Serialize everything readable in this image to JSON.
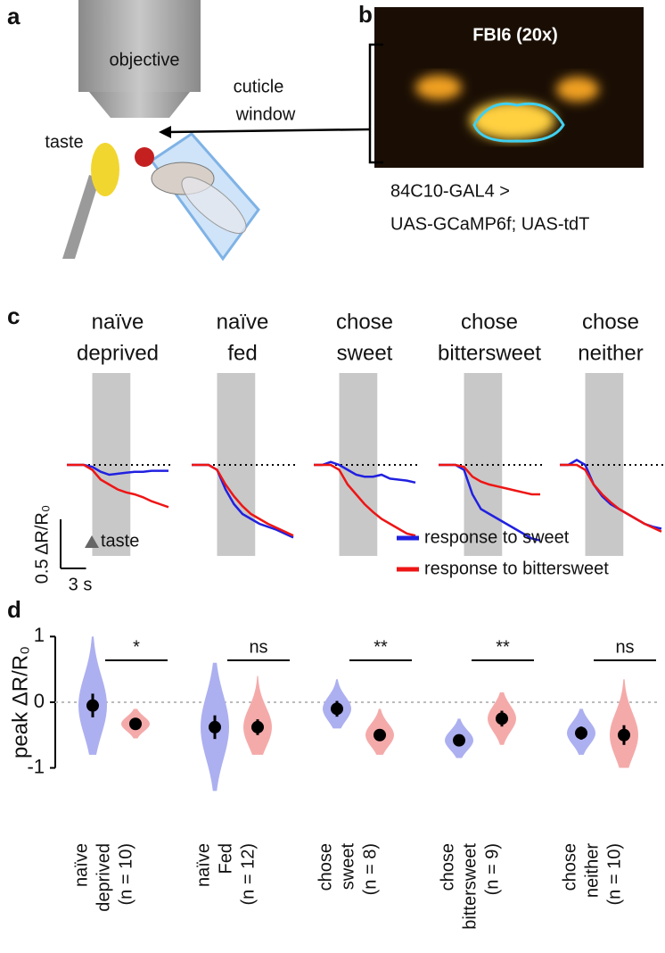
{
  "panel_labels": [
    "a",
    "b",
    "c",
    "d"
  ],
  "panel_a": {
    "objective": "objective",
    "cuticle_window": [
      "cuticle",
      "window"
    ],
    "taste": "taste"
  },
  "panel_b": {
    "title": "FBI6 (20x)",
    "genotype": [
      "84C10-GAL4 >",
      "UAS-GCaMP6f; UAS-tdT"
    ]
  },
  "chart_data": [
    {
      "type": "line",
      "x": [
        0,
        1,
        2,
        3,
        4,
        5,
        6,
        7,
        8,
        9,
        10,
        11,
        12
      ],
      "stimulus": [
        3,
        7.5
      ],
      "stimulus_label": "taste",
      "scale_bar": {
        "y": {
          "value": 0.5,
          "label": "0.5 ΔR/R₀"
        },
        "x": {
          "value": 3,
          "label": "3 s"
        }
      },
      "series": [
        {
          "name": "response to sweet",
          "color": "#2020e0"
        },
        {
          "name": "response to bittersweet",
          "color": "#ee1515"
        }
      ],
      "panels": [
        {
          "title": [
            "naïve",
            "deprived"
          ],
          "values": [
            [
              0,
              0,
              0,
              -0.02,
              -0.07,
              -0.1,
              -0.09,
              -0.08,
              -0.07,
              -0.07,
              -0.06,
              -0.06,
              -0.06
            ],
            [
              0,
              0,
              0,
              -0.05,
              -0.15,
              -0.2,
              -0.25,
              -0.28,
              -0.3,
              -0.33,
              -0.37,
              -0.4,
              -0.43
            ]
          ]
        },
        {
          "title": [
            "naïve",
            "fed"
          ],
          "values": [
            [
              0,
              0,
              0,
              -0.05,
              -0.25,
              -0.4,
              -0.5,
              -0.55,
              -0.6,
              -0.63,
              -0.66,
              -0.7,
              -0.74
            ],
            [
              0,
              0,
              0,
              -0.05,
              -0.2,
              -0.32,
              -0.42,
              -0.5,
              -0.55,
              -0.6,
              -0.64,
              -0.68,
              -0.72
            ]
          ]
        },
        {
          "title": [
            "chose",
            "sweet"
          ],
          "values": [
            [
              0,
              0,
              0.03,
              0,
              -0.05,
              -0.1,
              -0.12,
              -0.12,
              -0.1,
              -0.14,
              -0.15,
              -0.16,
              -0.18
            ],
            [
              0,
              0,
              0,
              -0.05,
              -0.2,
              -0.3,
              -0.4,
              -0.48,
              -0.55,
              -0.6,
              -0.65,
              -0.7,
              -0.72
            ]
          ]
        },
        {
          "title": [
            "chose",
            "bittersweet"
          ],
          "values": [
            [
              0,
              0,
              0,
              -0.05,
              -0.3,
              -0.45,
              -0.5,
              -0.55,
              -0.6,
              -0.65,
              -0.7,
              -0.75,
              -0.77
            ],
            [
              0,
              0,
              0,
              -0.02,
              -0.12,
              -0.17,
              -0.2,
              -0.22,
              -0.24,
              -0.26,
              -0.28,
              -0.3,
              -0.3
            ]
          ]
        },
        {
          "title": [
            "chose",
            "neither"
          ],
          "values": [
            [
              0,
              0,
              0.05,
              0,
              -0.2,
              -0.32,
              -0.4,
              -0.45,
              -0.5,
              -0.55,
              -0.6,
              -0.63,
              -0.65
            ],
            [
              0,
              0,
              0,
              -0.05,
              -0.2,
              -0.3,
              -0.38,
              -0.45,
              -0.5,
              -0.55,
              -0.6,
              -0.64,
              -0.68
            ]
          ]
        }
      ]
    },
    {
      "type": "violin",
      "ylabel": "peak ΔR/R₀",
      "ylim": [
        -1.4,
        1.1
      ],
      "yticks": [
        -1,
        0,
        1
      ],
      "categories": [
        [
          "naïve",
          "deprived",
          "(n = 10)"
        ],
        [
          "naïve",
          "Fed",
          "(n = 12)"
        ],
        [
          "chose",
          "sweet",
          "(n = 8)"
        ],
        [
          "chose",
          "bittersweet",
          "(n = 9)"
        ],
        [
          "chose",
          "neither",
          "(n = 10)"
        ]
      ],
      "significance": [
        "*",
        "ns",
        "**",
        "**",
        "ns"
      ],
      "series": [
        {
          "color": "#acb0f0",
          "values": [
            -0.05,
            -0.38,
            -0.1,
            -0.58,
            -0.47
          ],
          "errors": [
            0.18,
            0.18,
            0.12,
            0.08,
            0.1
          ],
          "min": [
            -0.8,
            -1.35,
            -0.4,
            -0.85,
            -0.8
          ],
          "max": [
            1.0,
            0.6,
            0.35,
            -0.25,
            -0.1
          ]
        },
        {
          "color": "#f5aaaa",
          "values": [
            -0.33,
            -0.38,
            -0.5,
            -0.25,
            -0.5
          ],
          "errors": [
            0.05,
            0.12,
            0.08,
            0.12,
            0.15
          ],
          "min": [
            -0.55,
            -0.8,
            -0.8,
            -0.65,
            -1.0
          ],
          "max": [
            -0.1,
            0.4,
            -0.1,
            0.15,
            0.35
          ]
        }
      ]
    }
  ]
}
